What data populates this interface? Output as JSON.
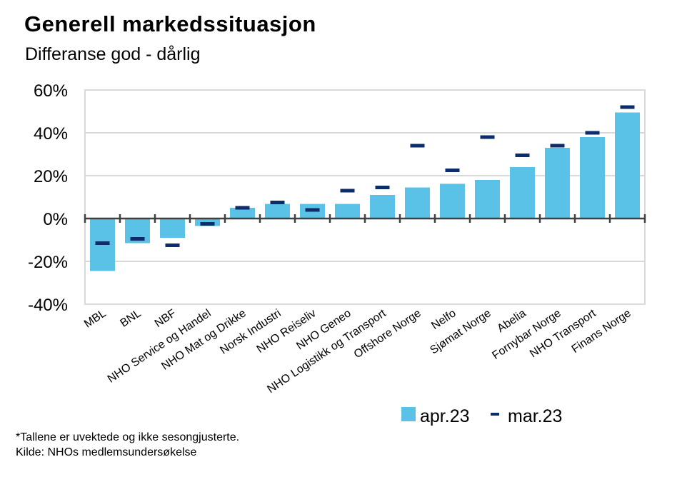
{
  "chart_data": {
    "type": "bar",
    "title": "Generell markedssituasjon",
    "subtitle": "Differanse god - dårlig",
    "categories": [
      "MBL",
      "BNL",
      "NBF",
      "NHO Service og Handel",
      "NHO Mat og Drikke",
      "Norsk Industri",
      "NHO Reiseliv",
      "NHO Geneo",
      "NHO Logistikk og Transport",
      "Offshore Norge",
      "Nelfo",
      "Sjømat Norge",
      "Abelia",
      "Fornybar Norge",
      "NHO Transport",
      "Finans Norge"
    ],
    "series": [
      {
        "name": "apr.23",
        "kind": "bar",
        "color": "#5bc2e7",
        "values": [
          -24.5,
          -11.5,
          -9,
          -3.5,
          5,
          6.8,
          6.8,
          6.8,
          11,
          14.5,
          16.2,
          18,
          24,
          33,
          38,
          49.5
        ]
      },
      {
        "name": "mar.23",
        "kind": "marker",
        "color": "#0d2c6c",
        "values": [
          -11.5,
          -9.5,
          -12.5,
          -2.5,
          5,
          7.5,
          4,
          13,
          14.5,
          34,
          22.5,
          38,
          29.5,
          34,
          40,
          52
        ]
      }
    ],
    "yticks": [
      "60%",
      "40%",
      "20%",
      "0%",
      "-20%",
      "-40%"
    ],
    "ylim": [
      -40,
      60
    ],
    "grid": true,
    "legend": "bottom-right"
  },
  "footnote": {
    "line1": "*Tallene er uvektede og ikke sesongjusterte.",
    "line2": "Kilde: NHOs medlemsundersøkelse"
  }
}
